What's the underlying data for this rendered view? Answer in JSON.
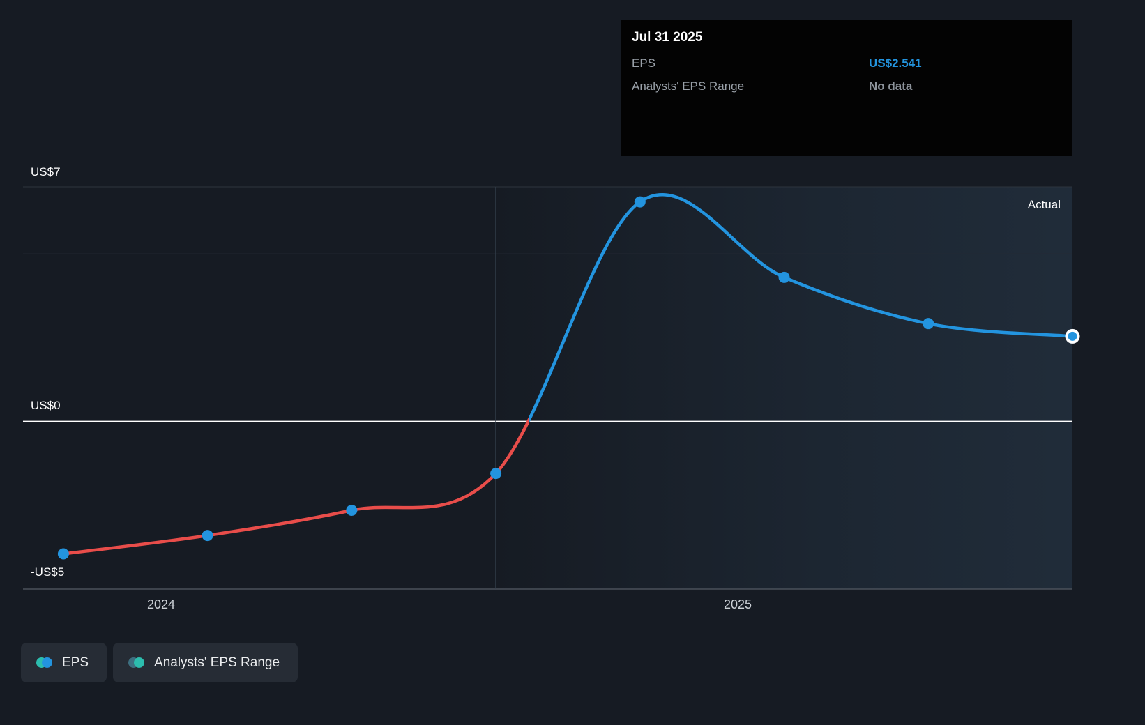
{
  "colors": {
    "background": "#161b23",
    "eps_actual_blue": "#2394df",
    "eps_negative_red": "#e84d4a",
    "teal": "#2cbdae",
    "zero_line": "#ffffff",
    "tooltip_value_blue": "#2394df"
  },
  "tooltip": {
    "date": "Jul 31 2025",
    "rows": [
      {
        "label": "EPS",
        "value": "US$2.541"
      },
      {
        "label": "Analysts' EPS Range",
        "value": "No data"
      }
    ]
  },
  "annotations": {
    "actual": "Actual"
  },
  "legend": {
    "items": [
      {
        "label": "EPS",
        "dot_colors": [
          "#2cbdae",
          "#2394df"
        ]
      },
      {
        "label": "Analysts' EPS Range",
        "dot_colors": [
          "#3d6f80",
          "#2cbdae"
        ]
      }
    ]
  },
  "chart_data": {
    "type": "line",
    "title": "",
    "xlim": [
      2023.76,
      2025.58
    ],
    "ylim": [
      -5,
      7
    ],
    "y_gridlines": [
      7,
      5,
      0,
      -5
    ],
    "y_tick_labels": [
      {
        "value": 7,
        "label": "US$7"
      },
      {
        "value": 0,
        "label": "US$0"
      },
      {
        "value": -5,
        "label": "-US$5"
      }
    ],
    "x_ticks": [
      {
        "value": 2024.0,
        "label": "2024"
      },
      {
        "value": 2025.0,
        "label": "2025"
      }
    ],
    "divider_x": 2024.58,
    "series": [
      {
        "name": "EPS",
        "x": [
          2023.83,
          2024.08,
          2024.33,
          2024.58,
          2024.83,
          2025.08,
          2025.33,
          2025.58
        ],
        "values": [
          -3.95,
          -3.4,
          -2.65,
          -1.55,
          6.55,
          4.3,
          2.92,
          2.541
        ],
        "color_negative_segment": "#e84d4a",
        "color_actual_segment": "#2394df",
        "last_point_has_white_ring": true
      }
    ]
  }
}
